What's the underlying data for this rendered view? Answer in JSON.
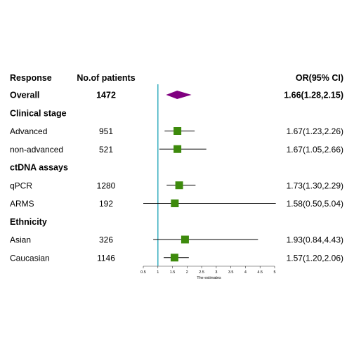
{
  "chart_data": {
    "type": "forest",
    "columns": {
      "label": "Response",
      "n": "No.of patients",
      "ci": "OR(95% CI)"
    },
    "rows": [
      {
        "label": "Overall",
        "n": "1472",
        "ci": "1.66(1.28,2.15)",
        "or": 1.66,
        "lo": 1.28,
        "hi": 2.15,
        "kind": "summary"
      },
      {
        "label": "Clinical stage",
        "kind": "group"
      },
      {
        "label": "Advanced",
        "n": "951",
        "ci": "1.67(1.23,2.26)",
        "or": 1.67,
        "lo": 1.23,
        "hi": 2.26,
        "kind": "item"
      },
      {
        "label": "non-advanced",
        "n": "521",
        "ci": "1.67(1.05,2.66)",
        "or": 1.67,
        "lo": 1.05,
        "hi": 2.66,
        "kind": "item"
      },
      {
        "label": "ctDNA assays",
        "kind": "group"
      },
      {
        "label": "qPCR",
        "n": "1280",
        "ci": "1.73(1.30,2.29)",
        "or": 1.73,
        "lo": 1.3,
        "hi": 2.29,
        "kind": "item"
      },
      {
        "label": "ARMS",
        "n": "192",
        "ci": "1.58(0.50,5.04)",
        "or": 1.58,
        "lo": 0.5,
        "hi": 5.04,
        "kind": "item"
      },
      {
        "label": "Ethnicity",
        "kind": "group"
      },
      {
        "label": "Asian",
        "n": "326",
        "ci": "1.93(0.84,4.43)",
        "or": 1.93,
        "lo": 0.84,
        "hi": 4.43,
        "kind": "item"
      },
      {
        "label": "Caucasian",
        "n": "1146",
        "ci": "1.57(1.20,2.06)",
        "or": 1.57,
        "lo": 1.2,
        "hi": 2.06,
        "kind": "item"
      }
    ],
    "x_ticks": [
      "0.5",
      "1",
      "1.5",
      "2",
      "2.5",
      "3",
      "3.5",
      "4",
      "4.5",
      "5"
    ],
    "xlabel": "The estimates",
    "xlim": [
      0.5,
      5
    ],
    "reference_line": 1,
    "colors": {
      "marker": "#3d8a0c",
      "summary": "#800080",
      "reference": "#46b3c4",
      "ci_line": "#000000"
    }
  }
}
